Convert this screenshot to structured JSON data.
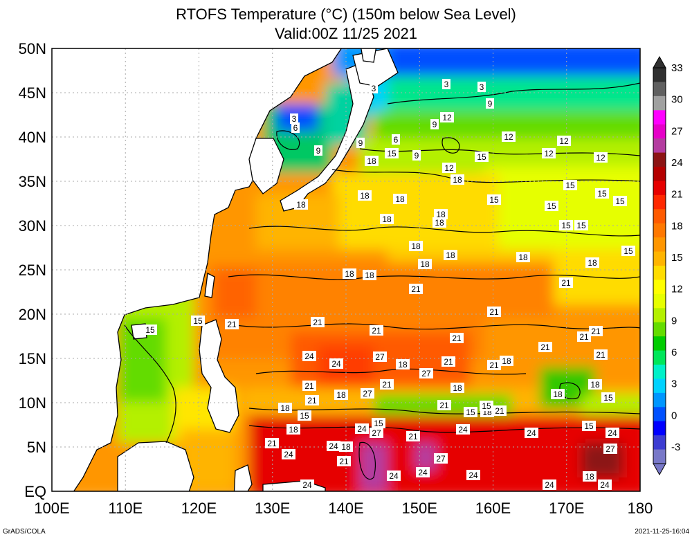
{
  "title": {
    "line1": "RTOFS Temperature (°C) (150m below Sea Level)",
    "line2": "Valid:00Z 11/25 2021"
  },
  "map": {
    "lon_labels": [
      "100E",
      "110E",
      "120E",
      "130E",
      "140E",
      "150E",
      "160E",
      "170E",
      "180"
    ],
    "lat_labels": [
      "EQ",
      "5N",
      "10N",
      "15N",
      "20N",
      "25N",
      "30N",
      "35N",
      "40N",
      "45N",
      "50N"
    ],
    "lon_range": [
      100,
      180
    ],
    "lat_range": [
      0,
      50
    ],
    "grid": "dotted"
  },
  "colorbar": {
    "ticks": [
      "-3",
      "0",
      "3",
      "6",
      "9",
      "12",
      "15",
      "18",
      "21",
      "24",
      "27",
      "30",
      "33"
    ],
    "colors": [
      "#7878c8",
      "#3c3cd2",
      "#0000ff",
      "#0050ff",
      "#0096ff",
      "#00d2ff",
      "#00f0c8",
      "#00e65a",
      "#00cc00",
      "#64dc00",
      "#b4f000",
      "#e6ff00",
      "#ffff00",
      "#ffdc00",
      "#ffb400",
      "#ff9600",
      "#ff7800",
      "#ff5a00",
      "#ff2800",
      "#e60000",
      "#b40000",
      "#8c1414",
      "#b43ca0",
      "#e600c8",
      "#ff00ff",
      "#a0a0a0",
      "#606060",
      "#303030"
    ]
  },
  "contour_labels": [
    "3",
    "6",
    "9",
    "12",
    "15",
    "18",
    "21",
    "24",
    "27"
  ],
  "footer": {
    "left": "GrADS/COLA",
    "right": "2021-11-25-16:04"
  }
}
